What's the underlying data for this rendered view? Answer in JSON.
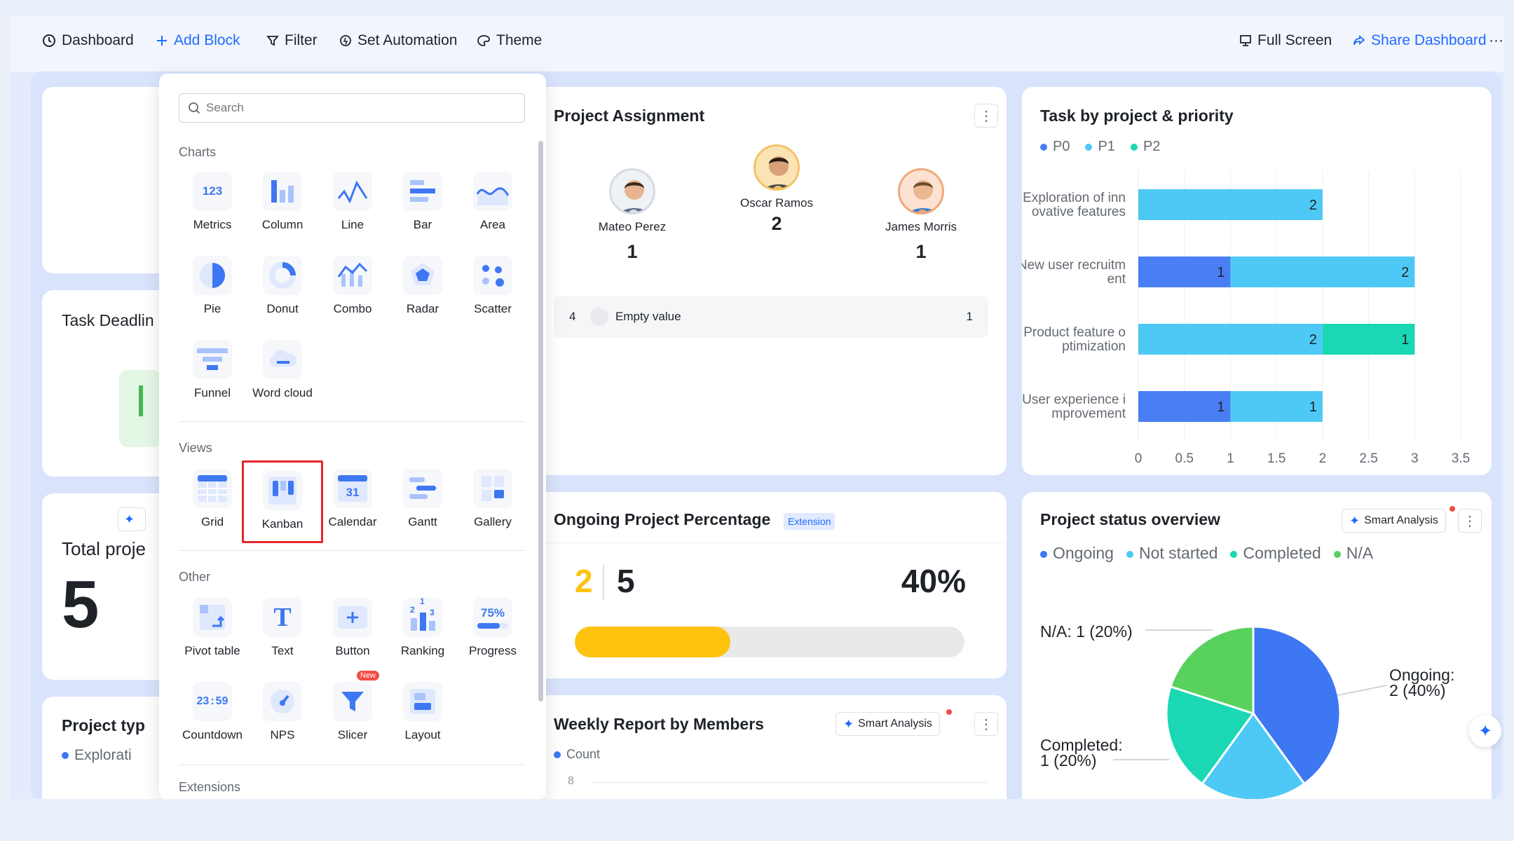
{
  "toolbar": {
    "dashboard": "Dashboard",
    "add_block": "Add Block",
    "filter": "Filter",
    "automation": "Set Automation",
    "theme": "Theme",
    "full_screen": "Full Screen",
    "share": "Share Dashboard",
    "more": "···"
  },
  "picker": {
    "search_placeholder": "Search",
    "sections": {
      "charts": "Charts",
      "views": "Views",
      "other": "Other",
      "extensions": "Extensions"
    },
    "charts": [
      "Metrics",
      "Column",
      "Line",
      "Bar",
      "Area",
      "Pie",
      "Donut",
      "Combo",
      "Radar",
      "Scatter",
      "Funnel",
      "Word cloud"
    ],
    "views": [
      "Grid",
      "Kanban",
      "Calendar",
      "Gantt",
      "Gallery"
    ],
    "other": [
      "Pivot table",
      "Text",
      "Button",
      "Ranking",
      "Progress",
      "Countdown",
      "NPS",
      "Slicer",
      "Layout"
    ],
    "icon_text": {
      "metrics": "123",
      "calendar": "31",
      "ranking_1": "1",
      "ranking_2": "2",
      "ranking_3": "3",
      "progress": "75%",
      "countdown_h": "23",
      "countdown_m": "59",
      "new_badge": "New",
      "text": "T"
    },
    "selected": "Kanban"
  },
  "left_cards": {
    "task_deadline": "Task Deadlin",
    "total_projects": "Total proje",
    "total_value": "5",
    "project_type": "Project typ",
    "project_type_legend": "Explorati"
  },
  "project_assignment": {
    "title": "Project Assignment",
    "people": [
      {
        "name": "Mateo Perez",
        "count": "1",
        "rank": "2"
      },
      {
        "name": "Oscar Ramos",
        "count": "2",
        "rank": "1"
      },
      {
        "name": "James Morris",
        "count": "1",
        "rank": "3"
      }
    ],
    "row": {
      "rank": "4",
      "label": "Empty value",
      "count": "1"
    }
  },
  "task_by_project": {
    "title": "Task by project & priority",
    "legend": [
      "P0",
      "P1",
      "P2"
    ]
  },
  "ongoing": {
    "title": "Ongoing Project Percentage",
    "badge": "Extension",
    "current": "2",
    "total": "5",
    "percent": "40%",
    "progress": 0.4
  },
  "weekly": {
    "title": "Weekly Report by Members",
    "legend": "Count",
    "tick": "8",
    "smart": "Smart Analysis"
  },
  "status": {
    "title": "Project status overview",
    "legend": [
      "Ongoing",
      "Not started",
      "Completed",
      "N/A"
    ],
    "smart": "Smart Analysis",
    "labels": {
      "na": "N/A: 1 (20%)",
      "ongoing_1": "Ongoing:",
      "ongoing_2": "2 (40%)",
      "completed_1": "Completed:",
      "completed_2": "1 (20%)"
    }
  },
  "colors": {
    "accent": "#1f6bff",
    "p0": "#4a7ef5",
    "p1": "#4ec9f5",
    "p2": "#19d8b3",
    "na": "#58d25d",
    "ongoing": "#3d77f2",
    "progress": "#ffc30f"
  },
  "chart_data": [
    {
      "type": "bar",
      "orientation": "horizontal",
      "stacked": true,
      "title": "Task by project & priority",
      "categories": [
        "Exploration of innovative features",
        "New user recruitment",
        "Product feature optimization",
        "User experience improvement"
      ],
      "category_labels": [
        [
          "Exploration of inn",
          "ovative features"
        ],
        [
          "New user recruitm",
          "ent"
        ],
        [
          "Product feature o",
          "ptimization"
        ],
        [
          "User experience i",
          "mprovement"
        ]
      ],
      "series": [
        {
          "name": "P0",
          "values": [
            0,
            1,
            0,
            1
          ]
        },
        {
          "name": "P1",
          "values": [
            2,
            2,
            2,
            1
          ]
        },
        {
          "name": "P2",
          "values": [
            0,
            0,
            1,
            0
          ]
        }
      ],
      "xlim": [
        0,
        3.5
      ],
      "xticks": [
        "0",
        "0.5",
        "1",
        "1.5",
        "2",
        "2.5",
        "3",
        "3.5"
      ],
      "grid": true,
      "legend": "top-left"
    },
    {
      "type": "pie",
      "title": "Project status overview",
      "categories": [
        "Ongoing",
        "Not started",
        "Completed",
        "N/A"
      ],
      "values": [
        2,
        1,
        1,
        1
      ],
      "legend": "top-left"
    }
  ]
}
